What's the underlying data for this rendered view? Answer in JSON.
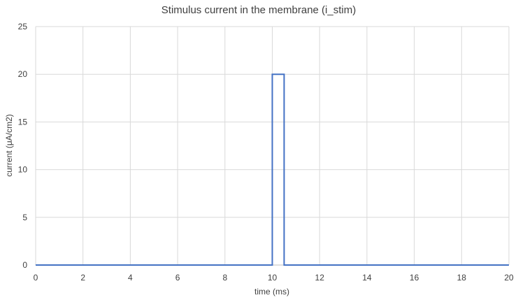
{
  "chart_data": {
    "type": "line",
    "title": "Stimulus current in the membrane (i_stim)",
    "xlabel": "time (ms)",
    "ylabel": "current (μA/cm2)",
    "xlim": [
      0,
      20
    ],
    "ylim": [
      0,
      25
    ],
    "x_ticks": [
      "0",
      "2",
      "4",
      "6",
      "8",
      "10",
      "12",
      "14",
      "16",
      "18",
      "20"
    ],
    "y_ticks": [
      "0",
      "5",
      "10",
      "15",
      "20",
      "25"
    ],
    "grid": true,
    "legend": "none",
    "series": [
      {
        "color": "#4472c4",
        "x": [
          0,
          10,
          10,
          10.5,
          10.5,
          20
        ],
        "y": [
          0,
          0,
          20,
          20,
          0,
          0
        ]
      }
    ]
  }
}
